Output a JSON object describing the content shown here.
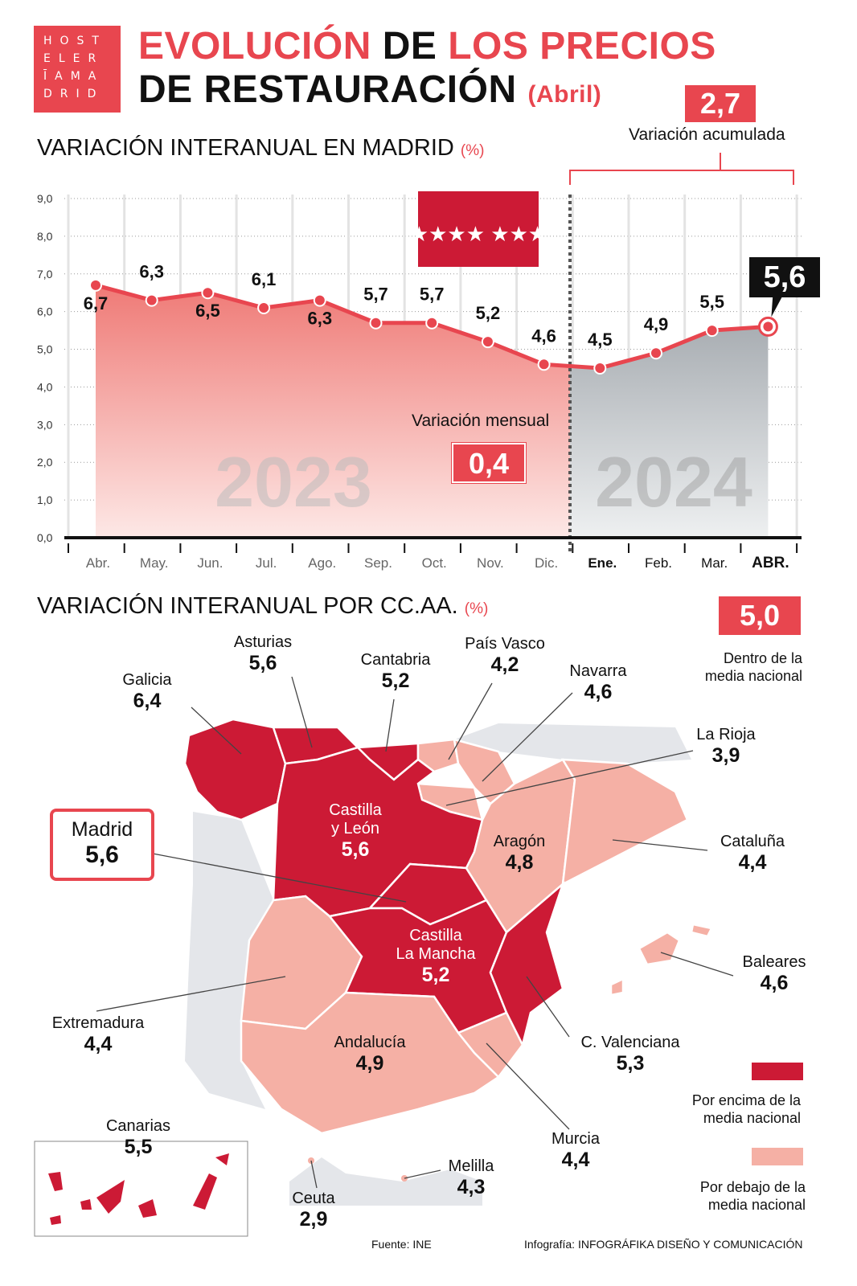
{
  "logo": "HOSTELERĪAMADRID",
  "logo_lines": [
    "HOST",
    "ELER",
    "ĪAMA",
    "DRID"
  ],
  "title": {
    "line1_a": "EVOLUCIÓN",
    "line1_b": "DE",
    "line1_c": "LOS PRECIOS",
    "line2": "DE RESTAURACIÓN",
    "line2_sub": "(Abril)"
  },
  "section1": {
    "title": "VARIACIÓN INTERANUAL EN MADRID",
    "unit": "(%)",
    "accumulated_value": "2,7",
    "accumulated_label": "Variación acumulada",
    "monthly_label": "Variación mensual",
    "monthly_value": "0,4",
    "year_2023": "2023",
    "year_2024": "2024",
    "current_value": "5,6"
  },
  "chart_data": {
    "type": "area",
    "categories": [
      "Abr.",
      "May.",
      "Jun.",
      "Jul.",
      "Ago.",
      "Sep.",
      "Oct.",
      "Nov.",
      "Dic.",
      "Ene.",
      "Feb.",
      "Mar.",
      "ABR."
    ],
    "values": [
      6.7,
      6.3,
      6.5,
      6.1,
      6.3,
      5.7,
      5.7,
      5.2,
      4.6,
      4.5,
      4.9,
      5.5,
      5.6
    ],
    "labels": [
      "6,7",
      "6,3",
      "6,5",
      "6,1",
      "6,3",
      "5,7",
      "5,7",
      "5,2",
      "4,6",
      "4,5",
      "4,9",
      "5,5",
      "5,6"
    ],
    "ylim": [
      0,
      9
    ],
    "yticks": [
      "0,0",
      "1,0",
      "2,0",
      "3,0",
      "4,0",
      "5,0",
      "6,0",
      "7,0",
      "8,0",
      "9,0"
    ],
    "grid": true,
    "colors": {
      "line": "#e8464f",
      "area_2023": "#f08a86",
      "area_2024": "#b9bec3"
    }
  },
  "section2": {
    "title": "VARIACIÓN INTERANUAL POR CC.AA.",
    "unit": "(%)",
    "national_value": "5,0",
    "national_label": [
      "Dentro de la",
      "media nacional"
    ],
    "legend": [
      {
        "label": [
          "Por encima de la",
          "media nacional"
        ],
        "color": "#cc1a35"
      },
      {
        "label": [
          "Por debajo de la",
          "media nacional"
        ],
        "color": "#f5b0a5"
      }
    ]
  },
  "regions": {
    "galicia": {
      "name": "Galicia",
      "value": "6,4"
    },
    "asturias": {
      "name": "Asturias",
      "value": "5,6"
    },
    "cantabria": {
      "name": "Cantabria",
      "value": "5,2"
    },
    "paisvasco": {
      "name": "País Vasco",
      "value": "4,2"
    },
    "navarra": {
      "name": "Navarra",
      "value": "4,6"
    },
    "larioja": {
      "name": "La Rioja",
      "value": "3,9"
    },
    "cyl": {
      "name1": "Castilla",
      "name2": "y León",
      "value": "5,6"
    },
    "madrid": {
      "name": "Madrid",
      "value": "5,6"
    },
    "aragon": {
      "name": "Aragón",
      "value": "4,8"
    },
    "cataluna": {
      "name": "Cataluña",
      "value": "4,4"
    },
    "clm": {
      "name1": "Castilla",
      "name2": "La Mancha",
      "value": "5,2"
    },
    "baleares": {
      "name": "Baleares",
      "value": "4,6"
    },
    "extremadura": {
      "name": "Extremadura",
      "value": "4,4"
    },
    "valenciana": {
      "name": "C. Valenciana",
      "value": "5,3"
    },
    "andalucia": {
      "name": "Andalucía",
      "value": "4,9"
    },
    "murcia": {
      "name": "Murcia",
      "value": "4,4"
    },
    "canarias": {
      "name": "Canarias",
      "value": "5,5"
    },
    "ceuta": {
      "name": "Ceuta",
      "value": "2,9"
    },
    "melilla": {
      "name": "Melilla",
      "value": "4,3"
    }
  },
  "footer": {
    "source": "Fuente: INE",
    "credit_prefix": "Infografía:",
    "credit": "INFOGRÁFIKA DISEÑO Y COMUNICACIÓN"
  }
}
